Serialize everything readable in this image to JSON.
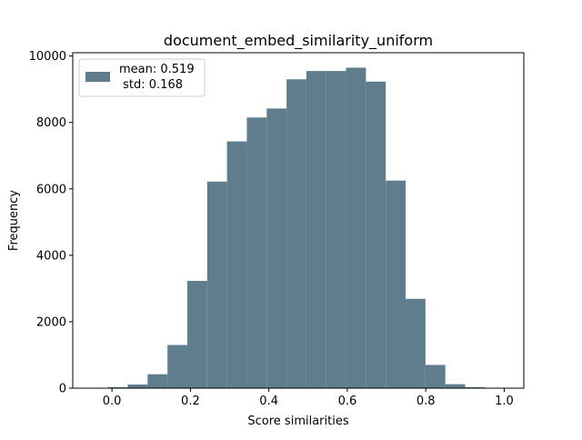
{
  "chart_data": {
    "type": "bar",
    "subtype": "histogram",
    "title": "document_embed_similarity_uniform",
    "xlabel": "Score similarities",
    "ylabel": "Frequency",
    "xlim": [
      -0.1,
      1.05
    ],
    "ylim": [
      0,
      10100
    ],
    "xticks": [
      0.0,
      0.2,
      0.4,
      0.6,
      0.8,
      1.0
    ],
    "xtick_labels": [
      "0.0",
      "0.2",
      "0.4",
      "0.6",
      "0.8",
      "1.0"
    ],
    "yticks": [
      0,
      2000,
      4000,
      6000,
      8000,
      10000
    ],
    "ytick_labels": [
      "0",
      "2000",
      "4000",
      "6000",
      "8000",
      "10000"
    ],
    "bar_color": "#607d8e",
    "bins": [
      {
        "x0": -0.0103,
        "x1": 0.0403,
        "value": 30
      },
      {
        "x0": 0.0403,
        "x1": 0.0909,
        "value": 110
      },
      {
        "x0": 0.0909,
        "x1": 0.1415,
        "value": 420
      },
      {
        "x0": 0.1415,
        "x1": 0.1921,
        "value": 1300
      },
      {
        "x0": 0.1921,
        "x1": 0.2427,
        "value": 3230
      },
      {
        "x0": 0.2427,
        "x1": 0.2933,
        "value": 6220
      },
      {
        "x0": 0.2933,
        "x1": 0.3439,
        "value": 7430
      },
      {
        "x0": 0.3439,
        "x1": 0.3945,
        "value": 8150
      },
      {
        "x0": 0.3945,
        "x1": 0.4451,
        "value": 8420
      },
      {
        "x0": 0.4451,
        "x1": 0.4957,
        "value": 9300
      },
      {
        "x0": 0.4957,
        "x1": 0.5463,
        "value": 9550
      },
      {
        "x0": 0.5463,
        "x1": 0.5969,
        "value": 9550
      },
      {
        "x0": 0.5969,
        "x1": 0.6475,
        "value": 9650
      },
      {
        "x0": 0.6475,
        "x1": 0.6981,
        "value": 9230
      },
      {
        "x0": 0.6981,
        "x1": 0.7487,
        "value": 6250
      },
      {
        "x0": 0.7487,
        "x1": 0.7993,
        "value": 2690
      },
      {
        "x0": 0.7993,
        "x1": 0.8499,
        "value": 700
      },
      {
        "x0": 0.8499,
        "x1": 0.9005,
        "value": 120
      },
      {
        "x0": 0.9005,
        "x1": 0.9511,
        "value": 30
      }
    ],
    "legend": {
      "placement": "top-left",
      "line1": "mean: 0.519",
      "line2": " std: 0.168"
    },
    "grid": false
  }
}
